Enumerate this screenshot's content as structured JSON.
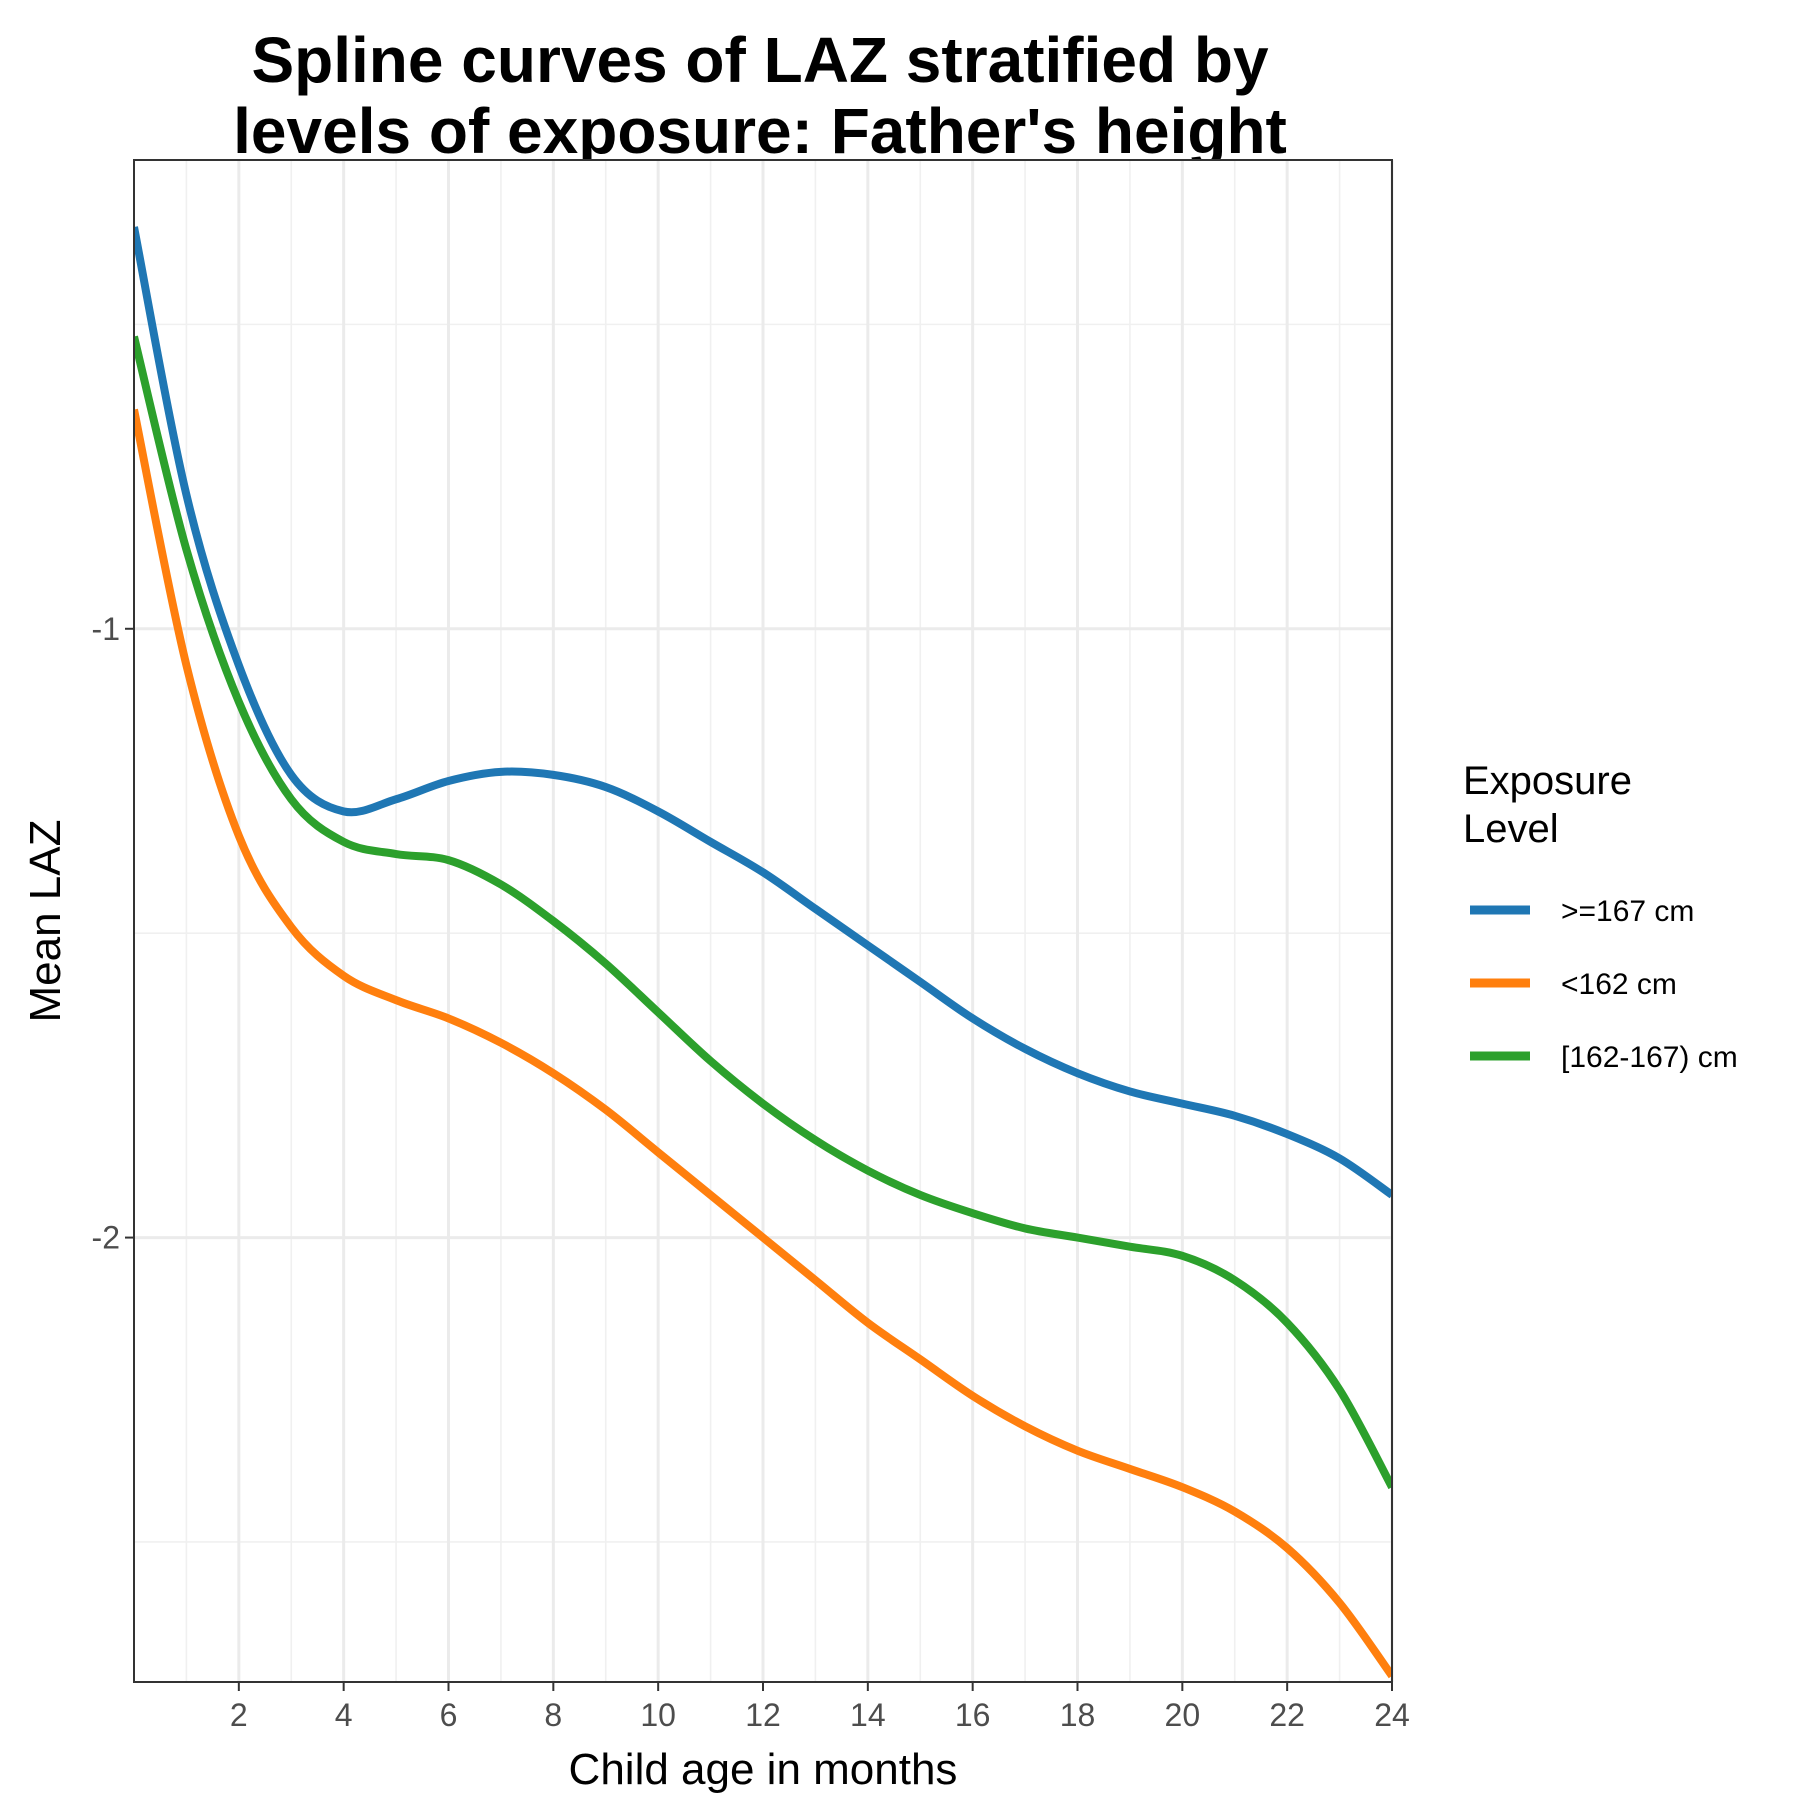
{
  "chart_data": {
    "type": "line",
    "title_line1": "Spline curves of LAZ stratified by",
    "title_line2": "levels of exposure: Father's height",
    "xlabel": "Child age in months",
    "ylabel": "Mean LAZ",
    "xlim": [
      0,
      24
    ],
    "ylim": [
      -2.73,
      -0.23
    ],
    "x_ticks": [
      2,
      4,
      6,
      8,
      10,
      12,
      14,
      16,
      18,
      20,
      22,
      24
    ],
    "y_ticks": [
      -1,
      -2
    ],
    "y_tick_labels": [
      "-1",
      "-2"
    ],
    "grid": true,
    "legend": {
      "title_line1": "Exposure",
      "title_line2": "Level",
      "position": "right"
    },
    "x": [
      0,
      1,
      2,
      3,
      4,
      5,
      6,
      7,
      8,
      9,
      10,
      11,
      12,
      13,
      14,
      15,
      16,
      17,
      18,
      19,
      20,
      21,
      22,
      23,
      24
    ],
    "series": [
      {
        "name": ">=167 cm",
        "color": "#1f77b4",
        "values": [
          -0.34,
          -0.78,
          -1.06,
          -1.24,
          -1.3,
          -1.28,
          -1.25,
          -1.235,
          -1.24,
          -1.26,
          -1.3,
          -1.35,
          -1.4,
          -1.46,
          -1.52,
          -1.58,
          -1.64,
          -1.69,
          -1.73,
          -1.76,
          -1.78,
          -1.8,
          -1.83,
          -1.87,
          -1.93
        ]
      },
      {
        "name": "<162 cm",
        "color": "#ff7f0e",
        "values": [
          -0.64,
          -1.06,
          -1.34,
          -1.49,
          -1.57,
          -1.61,
          -1.64,
          -1.68,
          -1.73,
          -1.79,
          -1.86,
          -1.93,
          -2.0,
          -2.07,
          -2.14,
          -2.2,
          -2.26,
          -2.31,
          -2.35,
          -2.38,
          -2.41,
          -2.45,
          -2.51,
          -2.6,
          -2.72
        ]
      },
      {
        "name": "[162-167) cm",
        "color": "#2ca02c",
        "values": [
          -0.52,
          -0.87,
          -1.12,
          -1.28,
          -1.35,
          -1.37,
          -1.38,
          -1.42,
          -1.48,
          -1.55,
          -1.63,
          -1.71,
          -1.78,
          -1.84,
          -1.89,
          -1.93,
          -1.96,
          -1.985,
          -2.0,
          -2.015,
          -2.03,
          -2.07,
          -2.14,
          -2.25,
          -2.41
        ]
      }
    ]
  }
}
